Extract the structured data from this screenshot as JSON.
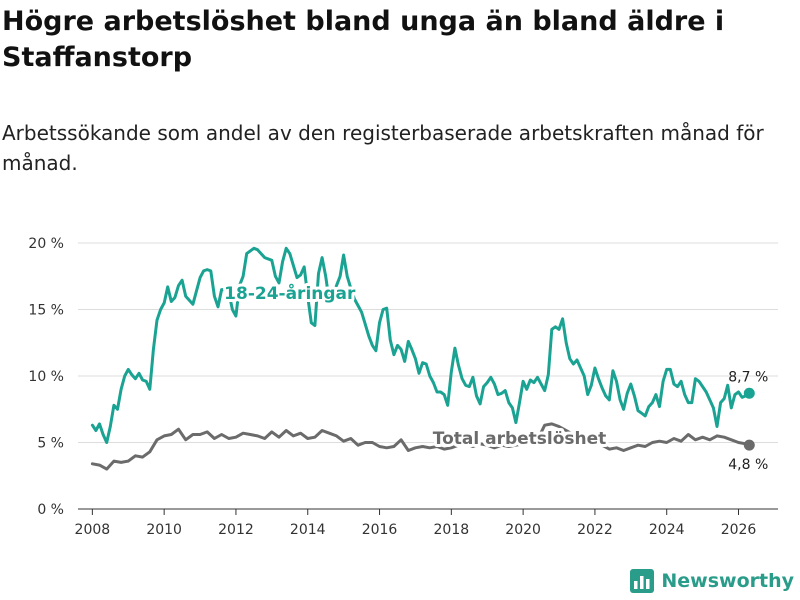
{
  "title": "Högre arbetslöshet bland unga än bland äldre i Staffanstorp",
  "subtitle": "Arbetssökande som andel av den registerbaserade arbetskraften månad för månad.",
  "brand": {
    "name": "Newsworthy",
    "icon": "newsworthy-logo-icon"
  },
  "colors": {
    "youth": "#1aa393",
    "total": "#6b6b6b",
    "grid": "#dddddd",
    "axis": "#333333",
    "brand": "#2a9c8a"
  },
  "chart_data": {
    "type": "line",
    "title": "Högre arbetslöshet bland unga än bland äldre i Staffanstorp",
    "xlabel": "",
    "ylabel": "",
    "xlim": [
      2007.6,
      2027.1
    ],
    "ylim": [
      0,
      20
    ],
    "y_ticks": [
      0,
      5,
      10,
      15,
      20
    ],
    "y_tick_labels": [
      "0 %",
      "5 %",
      "10 %",
      "15 %",
      "20 %"
    ],
    "x_ticks": [
      2008,
      2010,
      2012,
      2014,
      2016,
      2018,
      2020,
      2022,
      2024,
      2026
    ],
    "x_tick_labels": [
      "2008",
      "2010",
      "2012",
      "2014",
      "2016",
      "2018",
      "2020",
      "2022",
      "2024",
      "2026"
    ],
    "grid": true,
    "series": [
      {
        "name": "18-24-åringar",
        "label": "18-24-åringar",
        "end_label": "8,7 %",
        "points": [
          [
            2008.0,
            6.3
          ],
          [
            2008.1,
            5.9
          ],
          [
            2008.2,
            6.4
          ],
          [
            2008.3,
            5.6
          ],
          [
            2008.4,
            5.0
          ],
          [
            2008.5,
            6.2
          ],
          [
            2008.6,
            7.8
          ],
          [
            2008.7,
            7.5
          ],
          [
            2008.8,
            9.0
          ],
          [
            2008.9,
            10.0
          ],
          [
            2009.0,
            10.5
          ],
          [
            2009.1,
            10.1
          ],
          [
            2009.2,
            9.8
          ],
          [
            2009.3,
            10.2
          ],
          [
            2009.4,
            9.7
          ],
          [
            2009.5,
            9.6
          ],
          [
            2009.6,
            9.0
          ],
          [
            2009.7,
            12.0
          ],
          [
            2009.8,
            14.2
          ],
          [
            2009.9,
            15.0
          ],
          [
            2010.0,
            15.5
          ],
          [
            2010.1,
            16.7
          ],
          [
            2010.2,
            15.6
          ],
          [
            2010.3,
            15.9
          ],
          [
            2010.4,
            16.8
          ],
          [
            2010.5,
            17.2
          ],
          [
            2010.6,
            16.0
          ],
          [
            2010.8,
            15.4
          ],
          [
            2011.0,
            17.4
          ],
          [
            2011.1,
            17.9
          ],
          [
            2011.2,
            18.0
          ],
          [
            2011.3,
            17.9
          ],
          [
            2011.4,
            16.0
          ],
          [
            2011.5,
            15.2
          ],
          [
            2011.6,
            16.5
          ],
          [
            2011.7,
            16.5
          ],
          [
            2011.8,
            16.3
          ],
          [
            2011.9,
            15.0
          ],
          [
            2012.0,
            14.5
          ],
          [
            2012.1,
            16.8
          ],
          [
            2012.2,
            17.5
          ],
          [
            2012.3,
            19.2
          ],
          [
            2012.5,
            19.6
          ],
          [
            2012.6,
            19.5
          ],
          [
            2012.8,
            18.9
          ],
          [
            2013.0,
            18.7
          ],
          [
            2013.1,
            17.5
          ],
          [
            2013.2,
            17.0
          ],
          [
            2013.3,
            18.6
          ],
          [
            2013.4,
            19.6
          ],
          [
            2013.5,
            19.2
          ],
          [
            2013.6,
            18.3
          ],
          [
            2013.7,
            17.4
          ],
          [
            2013.8,
            17.6
          ],
          [
            2013.9,
            18.2
          ],
          [
            2014.0,
            16.0
          ],
          [
            2014.1,
            14.0
          ],
          [
            2014.2,
            13.8
          ],
          [
            2014.3,
            17.7
          ],
          [
            2014.4,
            18.9
          ],
          [
            2014.5,
            17.5
          ],
          [
            2014.6,
            15.6
          ],
          [
            2014.7,
            15.9
          ],
          [
            2014.8,
            16.8
          ],
          [
            2014.9,
            17.5
          ],
          [
            2015.0,
            19.1
          ],
          [
            2015.1,
            17.5
          ],
          [
            2015.2,
            16.6
          ],
          [
            2015.3,
            15.8
          ],
          [
            2015.4,
            15.3
          ],
          [
            2015.5,
            14.8
          ],
          [
            2015.6,
            13.9
          ],
          [
            2015.7,
            13.0
          ],
          [
            2015.8,
            12.3
          ],
          [
            2015.9,
            11.9
          ],
          [
            2016.0,
            14.0
          ],
          [
            2016.1,
            15.0
          ],
          [
            2016.2,
            15.1
          ],
          [
            2016.3,
            12.7
          ],
          [
            2016.4,
            11.6
          ],
          [
            2016.5,
            12.3
          ],
          [
            2016.6,
            12.0
          ],
          [
            2016.7,
            11.1
          ],
          [
            2016.8,
            12.6
          ],
          [
            2016.9,
            12.0
          ],
          [
            2017.0,
            11.3
          ],
          [
            2017.1,
            10.2
          ],
          [
            2017.2,
            11.0
          ],
          [
            2017.3,
            10.9
          ],
          [
            2017.4,
            10.0
          ],
          [
            2017.5,
            9.5
          ],
          [
            2017.6,
            8.8
          ],
          [
            2017.7,
            8.8
          ],
          [
            2017.8,
            8.6
          ],
          [
            2017.9,
            7.8
          ],
          [
            2018.0,
            10.3
          ],
          [
            2018.1,
            12.1
          ],
          [
            2018.2,
            10.8
          ],
          [
            2018.3,
            9.8
          ],
          [
            2018.4,
            9.3
          ],
          [
            2018.5,
            9.2
          ],
          [
            2018.6,
            9.9
          ],
          [
            2018.7,
            8.5
          ],
          [
            2018.8,
            7.9
          ],
          [
            2018.9,
            9.2
          ],
          [
            2019.0,
            9.5
          ],
          [
            2019.1,
            9.9
          ],
          [
            2019.2,
            9.4
          ],
          [
            2019.3,
            8.6
          ],
          [
            2019.4,
            8.7
          ],
          [
            2019.5,
            8.9
          ],
          [
            2019.6,
            8.0
          ],
          [
            2019.7,
            7.6
          ],
          [
            2019.8,
            6.5
          ],
          [
            2019.9,
            8.0
          ],
          [
            2020.0,
            9.6
          ],
          [
            2020.1,
            9.0
          ],
          [
            2020.2,
            9.7
          ],
          [
            2020.3,
            9.5
          ],
          [
            2020.4,
            9.9
          ],
          [
            2020.5,
            9.4
          ],
          [
            2020.6,
            8.9
          ],
          [
            2020.7,
            10.1
          ],
          [
            2020.8,
            13.5
          ],
          [
            2020.9,
            13.7
          ],
          [
            2021.0,
            13.5
          ],
          [
            2021.1,
            14.3
          ],
          [
            2021.2,
            12.5
          ],
          [
            2021.3,
            11.3
          ],
          [
            2021.4,
            10.9
          ],
          [
            2021.5,
            11.2
          ],
          [
            2021.6,
            10.6
          ],
          [
            2021.7,
            10.0
          ],
          [
            2021.8,
            8.6
          ],
          [
            2021.9,
            9.3
          ],
          [
            2022.0,
            10.6
          ],
          [
            2022.1,
            9.8
          ],
          [
            2022.2,
            9.1
          ],
          [
            2022.3,
            8.5
          ],
          [
            2022.4,
            8.2
          ],
          [
            2022.5,
            10.4
          ],
          [
            2022.6,
            9.6
          ],
          [
            2022.7,
            8.2
          ],
          [
            2022.8,
            7.5
          ],
          [
            2022.9,
            8.7
          ],
          [
            2023.0,
            9.4
          ],
          [
            2023.1,
            8.5
          ],
          [
            2023.2,
            7.4
          ],
          [
            2023.3,
            7.2
          ],
          [
            2023.4,
            7.0
          ],
          [
            2023.5,
            7.7
          ],
          [
            2023.6,
            8.0
          ],
          [
            2023.7,
            8.6
          ],
          [
            2023.8,
            7.7
          ],
          [
            2023.9,
            9.6
          ],
          [
            2024.0,
            10.5
          ],
          [
            2024.1,
            10.5
          ],
          [
            2024.2,
            9.4
          ],
          [
            2024.3,
            9.2
          ],
          [
            2024.4,
            9.6
          ],
          [
            2024.5,
            8.6
          ],
          [
            2024.6,
            8.0
          ],
          [
            2024.7,
            8.0
          ],
          [
            2024.8,
            9.8
          ],
          [
            2024.9,
            9.6
          ],
          [
            2025.0,
            9.2
          ],
          [
            2025.1,
            8.8
          ],
          [
            2025.2,
            8.2
          ],
          [
            2025.3,
            7.6
          ],
          [
            2025.4,
            6.2
          ],
          [
            2025.5,
            8.0
          ],
          [
            2025.6,
            8.3
          ],
          [
            2025.7,
            9.3
          ],
          [
            2025.8,
            7.6
          ],
          [
            2025.9,
            8.6
          ],
          [
            2026.0,
            8.8
          ],
          [
            2026.1,
            8.4
          ],
          [
            2026.2,
            8.5
          ],
          [
            2026.3,
            8.7
          ]
        ]
      },
      {
        "name": "Total arbetslöshet",
        "label": "Total arbetslöshet",
        "end_label": "4,8 %",
        "points": [
          [
            2008.0,
            3.4
          ],
          [
            2008.2,
            3.3
          ],
          [
            2008.4,
            3.0
          ],
          [
            2008.6,
            3.6
          ],
          [
            2008.8,
            3.5
          ],
          [
            2009.0,
            3.6
          ],
          [
            2009.2,
            4.0
          ],
          [
            2009.4,
            3.9
          ],
          [
            2009.6,
            4.3
          ],
          [
            2009.8,
            5.2
          ],
          [
            2010.0,
            5.5
          ],
          [
            2010.2,
            5.6
          ],
          [
            2010.4,
            6.0
          ],
          [
            2010.6,
            5.2
          ],
          [
            2010.8,
            5.6
          ],
          [
            2011.0,
            5.6
          ],
          [
            2011.2,
            5.8
          ],
          [
            2011.4,
            5.3
          ],
          [
            2011.6,
            5.6
          ],
          [
            2011.8,
            5.3
          ],
          [
            2012.0,
            5.4
          ],
          [
            2012.2,
            5.7
          ],
          [
            2012.4,
            5.6
          ],
          [
            2012.6,
            5.5
          ],
          [
            2012.8,
            5.3
          ],
          [
            2013.0,
            5.8
          ],
          [
            2013.2,
            5.4
          ],
          [
            2013.4,
            5.9
          ],
          [
            2013.6,
            5.5
          ],
          [
            2013.8,
            5.7
          ],
          [
            2014.0,
            5.3
          ],
          [
            2014.2,
            5.4
          ],
          [
            2014.4,
            5.9
          ],
          [
            2014.6,
            5.7
          ],
          [
            2014.8,
            5.5
          ],
          [
            2015.0,
            5.1
          ],
          [
            2015.2,
            5.3
          ],
          [
            2015.4,
            4.8
          ],
          [
            2015.6,
            5.0
          ],
          [
            2015.8,
            5.0
          ],
          [
            2016.0,
            4.7
          ],
          [
            2016.2,
            4.6
          ],
          [
            2016.4,
            4.7
          ],
          [
            2016.6,
            5.2
          ],
          [
            2016.8,
            4.4
          ],
          [
            2017.0,
            4.6
          ],
          [
            2017.2,
            4.7
          ],
          [
            2017.4,
            4.6
          ],
          [
            2017.6,
            4.7
          ],
          [
            2017.8,
            4.5
          ],
          [
            2018.0,
            4.6
          ],
          [
            2018.2,
            4.8
          ],
          [
            2018.4,
            4.9
          ],
          [
            2018.6,
            4.7
          ],
          [
            2018.8,
            4.9
          ],
          [
            2019.0,
            4.8
          ],
          [
            2019.2,
            4.6
          ],
          [
            2019.4,
            4.8
          ],
          [
            2019.6,
            4.7
          ],
          [
            2019.8,
            4.8
          ],
          [
            2020.0,
            4.9
          ],
          [
            2020.2,
            5.0
          ],
          [
            2020.4,
            5.2
          ],
          [
            2020.6,
            6.3
          ],
          [
            2020.8,
            6.4
          ],
          [
            2021.0,
            6.2
          ],
          [
            2021.2,
            5.9
          ],
          [
            2021.4,
            5.6
          ],
          [
            2021.6,
            5.4
          ],
          [
            2021.8,
            5.2
          ],
          [
            2022.0,
            5.0
          ],
          [
            2022.2,
            4.8
          ],
          [
            2022.4,
            4.5
          ],
          [
            2022.6,
            4.6
          ],
          [
            2022.8,
            4.4
          ],
          [
            2023.0,
            4.6
          ],
          [
            2023.2,
            4.8
          ],
          [
            2023.4,
            4.7
          ],
          [
            2023.6,
            5.0
          ],
          [
            2023.8,
            5.1
          ],
          [
            2024.0,
            5.0
          ],
          [
            2024.2,
            5.3
          ],
          [
            2024.4,
            5.1
          ],
          [
            2024.6,
            5.6
          ],
          [
            2024.8,
            5.2
          ],
          [
            2025.0,
            5.4
          ],
          [
            2025.2,
            5.2
          ],
          [
            2025.4,
            5.5
          ],
          [
            2025.6,
            5.4
          ],
          [
            2025.8,
            5.2
          ],
          [
            2026.0,
            5.0
          ],
          [
            2026.2,
            4.9
          ],
          [
            2026.3,
            4.8
          ]
        ]
      }
    ]
  }
}
